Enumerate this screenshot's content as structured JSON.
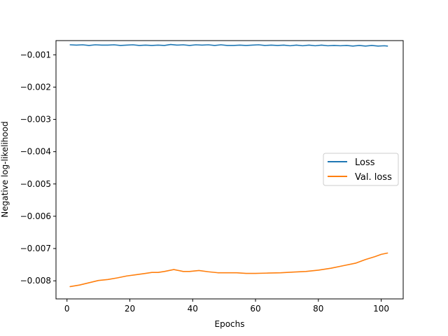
{
  "chart_data": {
    "type": "line",
    "title": "",
    "xlabel": "Epochs",
    "ylabel": "Negative log-likelihood",
    "xlim": [
      -3.5,
      107
    ],
    "ylim": [
      -0.00856,
      -0.00056
    ],
    "xticks": [
      0,
      20,
      40,
      60,
      80,
      100
    ],
    "xtick_labels": [
      "0",
      "20",
      "40",
      "60",
      "80",
      "100"
    ],
    "yticks": [
      -0.001,
      -0.002,
      -0.003,
      -0.004,
      -0.005,
      -0.006,
      -0.007,
      -0.008
    ],
    "ytick_labels": [
      "−0.001",
      "−0.002",
      "−0.003",
      "−0.004",
      "−0.005",
      "−0.006",
      "−0.007",
      "−0.008"
    ],
    "grid": false,
    "legend_position": "center-right",
    "series": [
      {
        "name": "Loss",
        "color": "#1f77b4",
        "x": [
          1,
          3,
          5,
          7,
          9,
          11,
          13,
          15,
          17,
          19,
          21,
          23,
          25,
          27,
          29,
          31,
          33,
          35,
          37,
          39,
          41,
          43,
          45,
          47,
          49,
          51,
          53,
          55,
          57,
          59,
          61,
          63,
          65,
          67,
          69,
          71,
          73,
          75,
          77,
          79,
          81,
          83,
          85,
          87,
          89,
          91,
          93,
          95,
          97,
          99,
          101,
          102
        ],
        "y": [
          -0.00069,
          -0.0007,
          -0.00069,
          -0.00071,
          -0.00069,
          -0.0007,
          -0.0007,
          -0.00069,
          -0.00071,
          -0.0007,
          -0.00069,
          -0.00071,
          -0.0007,
          -0.00071,
          -0.0007,
          -0.00071,
          -0.00068,
          -0.0007,
          -0.00069,
          -0.00071,
          -0.00069,
          -0.0007,
          -0.00069,
          -0.00071,
          -0.00069,
          -0.00071,
          -0.00071,
          -0.0007,
          -0.00071,
          -0.0007,
          -0.00069,
          -0.00071,
          -0.0007,
          -0.00071,
          -0.0007,
          -0.00072,
          -0.0007,
          -0.00072,
          -0.0007,
          -0.00072,
          -0.0007,
          -0.00072,
          -0.00071,
          -0.00072,
          -0.00071,
          -0.00073,
          -0.00071,
          -0.00073,
          -0.00071,
          -0.00073,
          -0.00072,
          -0.00073
        ]
      },
      {
        "name": "Val. loss",
        "color": "#ff7f0e",
        "x": [
          1,
          4,
          7,
          10,
          13,
          16,
          19,
          22,
          25,
          27,
          29,
          31,
          34,
          37,
          39,
          42,
          45,
          48,
          51,
          54,
          57,
          60,
          64,
          68,
          72,
          76,
          80,
          84,
          88,
          92,
          95,
          98,
          100,
          102
        ],
        "y": [
          -0.00818,
          -0.00813,
          -0.00806,
          -0.00799,
          -0.00796,
          -0.00791,
          -0.00785,
          -0.00781,
          -0.00777,
          -0.00774,
          -0.00774,
          -0.00771,
          -0.00765,
          -0.00771,
          -0.00771,
          -0.00768,
          -0.00772,
          -0.00775,
          -0.00775,
          -0.00775,
          -0.00777,
          -0.00777,
          -0.00776,
          -0.00775,
          -0.00773,
          -0.00771,
          -0.00767,
          -0.00761,
          -0.00753,
          -0.00745,
          -0.00734,
          -0.00725,
          -0.00718,
          -0.00714
        ]
      }
    ]
  }
}
